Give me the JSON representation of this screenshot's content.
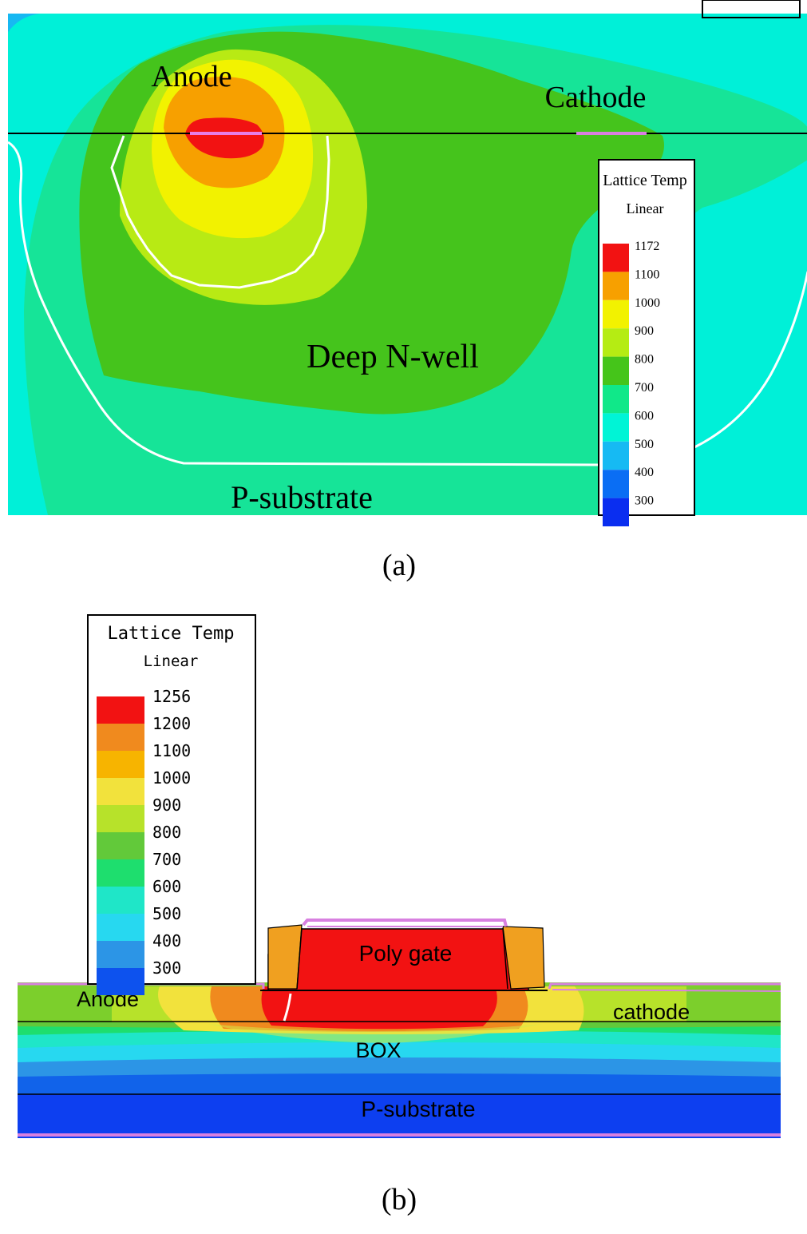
{
  "panel_a": {
    "labels": {
      "anode": "Anode",
      "cathode": "Cathode",
      "deep_nwell": "Deep N-well",
      "psubstrate": "P-substrate"
    },
    "legend": {
      "title": "Lattice Temp",
      "subtitle": "Linear",
      "ticks": [
        "1172",
        "1100",
        "1000",
        "900",
        "800",
        "700",
        "600",
        "500",
        "400",
        "300"
      ],
      "colors": [
        "#f21212",
        "#f7a000",
        "#f2f200",
        "#b5ec13",
        "#45c51a",
        "#10e889",
        "#00f4d6",
        "#16baf3",
        "#0a6ef4",
        "#0a2ef0"
      ]
    },
    "caption": "(a)"
  },
  "panel_b": {
    "labels": {
      "poly_gate": "Poly gate",
      "anode": "Anode",
      "cathode": "cathode",
      "box": "BOX",
      "psubstrate": "P-substrate"
    },
    "legend": {
      "title": "Lattice Temp",
      "subtitle": "Linear",
      "ticks": [
        "1256",
        "1200",
        "1100",
        "1000",
        "900",
        "800",
        "700",
        "600",
        "500",
        "400",
        "300"
      ],
      "colors": [
        "#f21212",
        "#f08a1e",
        "#f7b400",
        "#f2e23c",
        "#b7e22a",
        "#62c93a",
        "#1ede6e",
        "#1fe6c8",
        "#27d8f0",
        "#2c95e6",
        "#0d52ee"
      ]
    },
    "caption": "(b)"
  },
  "colors": {
    "contact": "#d880e0",
    "junction": "#ffffff"
  }
}
